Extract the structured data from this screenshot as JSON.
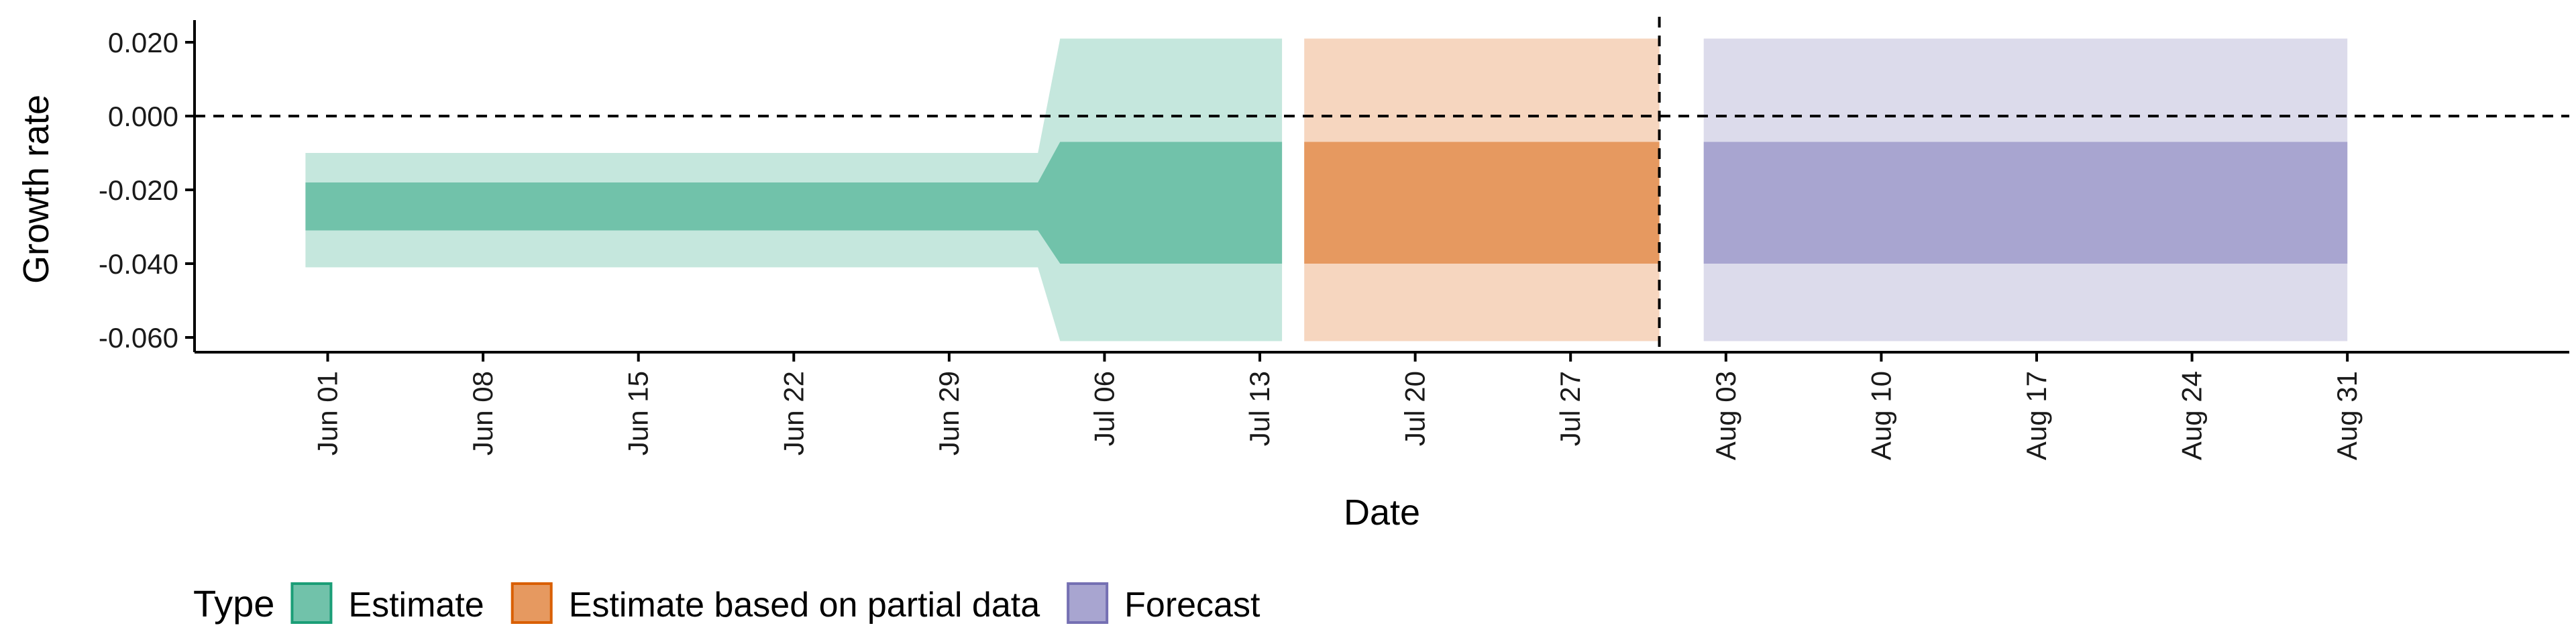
{
  "chart_data": {
    "type": "area",
    "xlabel": "Date",
    "ylabel": "Growth rate",
    "x_ticks": [
      "Jun 01",
      "Jun 08",
      "Jun 15",
      "Jun 22",
      "Jun 29",
      "Jul 06",
      "Jul 13",
      "Jul 20",
      "Jul 27",
      "Aug 03",
      "Aug 10",
      "Aug 17",
      "Aug 24",
      "Aug 31"
    ],
    "y_ticks": [
      "0.020",
      "0.000",
      "-0.020",
      "-0.040",
      "-0.060"
    ],
    "ylim": [
      -0.064,
      0.026
    ],
    "xlim": [
      "May 26",
      "Sep 10"
    ],
    "reference_lines": [
      {
        "axis": "y",
        "value": 0.0,
        "style": "dashed"
      },
      {
        "axis": "x",
        "value": "Jul 31",
        "style": "dashed"
      }
    ],
    "legend": {
      "title": "Type",
      "position": "bottom-left",
      "entries": [
        {
          "label": "Estimate",
          "fill": "#71c2aa",
          "border": "#1b9e77"
        },
        {
          "label": "Estimate based on partial data",
          "fill": "#e69960",
          "border": "#d95f02"
        },
        {
          "label": "Forecast",
          "fill": "#a8a5d0",
          "border": "#7570b3"
        }
      ]
    },
    "series": [
      {
        "name": "Estimate",
        "color_inner": "#71c2aa",
        "color_outer": "#c5e7dd",
        "points": [
          {
            "date": "May 31",
            "outer": [
              -0.041,
              -0.01
            ],
            "inner": [
              -0.031,
              -0.018
            ]
          },
          {
            "date": "Jul 03",
            "outer": [
              -0.041,
              -0.01
            ],
            "inner": [
              -0.031,
              -0.018
            ]
          },
          {
            "date": "Jul 04",
            "outer": [
              -0.061,
              0.021
            ],
            "inner": [
              -0.04,
              -0.007
            ]
          },
          {
            "date": "Jul 14",
            "outer": [
              -0.061,
              0.021
            ],
            "inner": [
              -0.04,
              -0.007
            ]
          }
        ]
      },
      {
        "name": "Estimate based on partial data",
        "color_inner": "#e69960",
        "color_outer": "#f6d6bf",
        "points": [
          {
            "date": "Jul 15",
            "outer": [
              -0.061,
              0.021
            ],
            "inner": [
              -0.04,
              -0.007
            ]
          },
          {
            "date": "Jul 31",
            "outer": [
              -0.061,
              0.021
            ],
            "inner": [
              -0.04,
              -0.007
            ]
          }
        ]
      },
      {
        "name": "Forecast",
        "color_inner": "#a8a5d0",
        "color_outer": "#dcdbeb",
        "points": [
          {
            "date": "Aug 02",
            "outer": [
              -0.061,
              0.021
            ],
            "inner": [
              -0.04,
              -0.007
            ]
          },
          {
            "date": "Aug 31",
            "outer": [
              -0.061,
              0.021
            ],
            "inner": [
              -0.04,
              -0.007
            ]
          }
        ]
      }
    ]
  }
}
